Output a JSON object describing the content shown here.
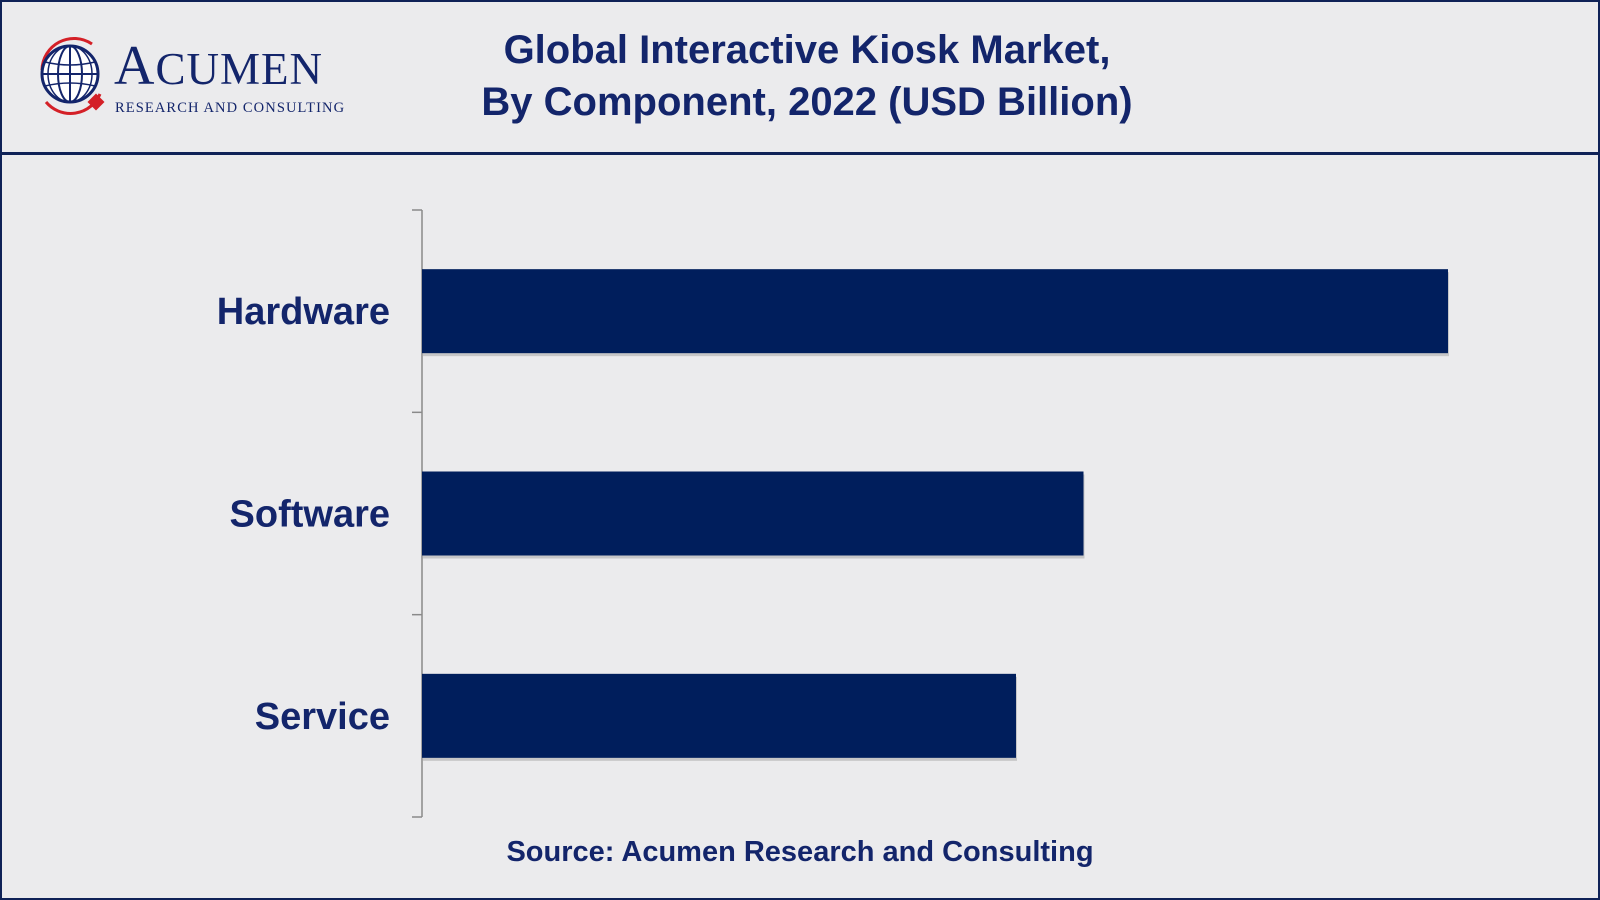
{
  "header": {
    "logo": {
      "brand_lead": "A",
      "brand_rest": "CUMEN",
      "tagline": "RESEARCH AND CONSULTING"
    },
    "title_line1": "Global Interactive Kiosk Market,",
    "title_line2": "By Component, 2022 (USD Billion)"
  },
  "footer": {
    "source": "Source: Acumen Research and Consulting"
  },
  "colors": {
    "bar": "#001e5c",
    "text": "#13256b",
    "axis": "#8a8a8a",
    "logo_red": "#d42027"
  },
  "chart_data": {
    "type": "bar",
    "orientation": "horizontal",
    "title": "Global Interactive Kiosk Market, By Component, 2022 (USD Billion)",
    "categories": [
      "Hardware",
      "Software",
      "Service"
    ],
    "values": [
      15.2,
      9.8,
      8.8
    ],
    "xlim": [
      0,
      16
    ],
    "grid": false,
    "legend": "none",
    "value_labels_shown": false
  }
}
